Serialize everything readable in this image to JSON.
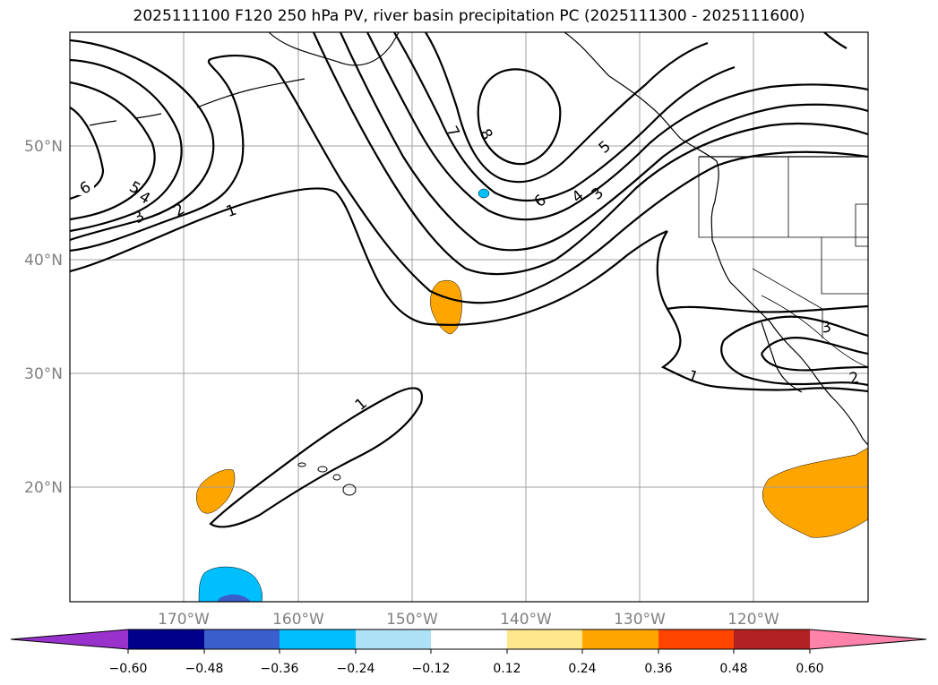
{
  "title": "2025111100 F120 250 hPa PV, river basin precipitation PC (2025111300 - 2025111600)",
  "map": {
    "lat_labels": [
      "50°N",
      "40°N",
      "30°N",
      "20°N"
    ],
    "lon_labels": [
      "170°W",
      "160°W",
      "150°W",
      "140°W",
      "130°W",
      "120°W"
    ],
    "pv_contour_levels": [
      1,
      2,
      3,
      4,
      5,
      6,
      7,
      8
    ],
    "contour_labels": [
      "6",
      "5",
      "4",
      "3",
      "2",
      "1",
      "7",
      "8",
      "5",
      "6",
      "4",
      "3",
      "1",
      "1",
      "3",
      "2"
    ],
    "gridlines": true
  },
  "colorbar": {
    "ticks": [
      "−0.60",
      "−0.48",
      "−0.36",
      "−0.24",
      "−0.12",
      "0.12",
      "0.24",
      "0.36",
      "0.48",
      "0.60"
    ],
    "colors": [
      "#9932CC",
      "#00008B",
      "#3A5FCD",
      "#00BFFF",
      "#ADE1F5",
      "#FFFFFF",
      "#FFE88C",
      "#FFA500",
      "#FF4500",
      "#B22222",
      "#FF82AB"
    ],
    "extend": "both"
  }
}
